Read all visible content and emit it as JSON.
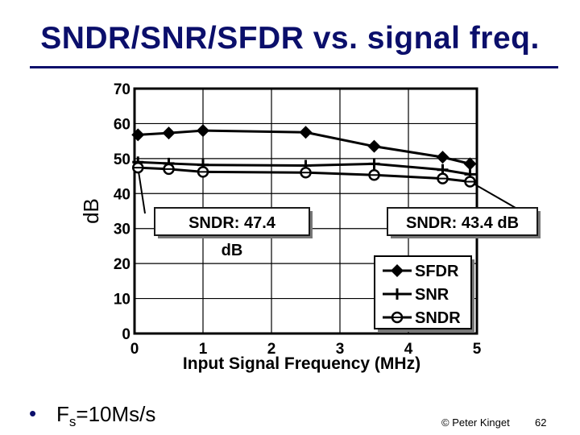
{
  "slide": {
    "title": "SNDR/SNR/SFDR vs. signal freq.",
    "bullet_symbol": "•",
    "bullet_pre": "F",
    "bullet_sub": "s",
    "bullet_post": "=10Ms/s",
    "copyright": "© Peter Kinget",
    "page_number": "62"
  },
  "colors": {
    "title": "#0b0f6b",
    "chart_line": "#000000",
    "box_border": "#1a1a1a"
  },
  "chart_data": {
    "type": "line",
    "title": "",
    "xlabel": "Input Signal Frequency (MHz)",
    "ylabel": "dB",
    "xlim": [
      0,
      5
    ],
    "ylim": [
      0,
      70
    ],
    "x_ticks": [
      0,
      1,
      2,
      3,
      4,
      5
    ],
    "y_ticks": [
      0,
      10,
      20,
      30,
      40,
      50,
      60,
      70
    ],
    "grid": true,
    "legend_position": "bottom-right",
    "series": [
      {
        "name": "SFDR",
        "marker": "diamond",
        "x": [
          0.05,
          0.5,
          1.0,
          2.5,
          3.5,
          4.5,
          4.9
        ],
        "y": [
          56.8,
          57.3,
          58.0,
          57.5,
          53.5,
          50.4,
          48.5
        ]
      },
      {
        "name": "SNR",
        "marker": "plus",
        "x": [
          0.05,
          0.5,
          1.0,
          2.5,
          3.5,
          4.5,
          4.9
        ],
        "y": [
          49.0,
          48.6,
          48.2,
          48.0,
          48.5,
          46.8,
          45.5
        ]
      },
      {
        "name": "SNDR",
        "marker": "circle",
        "x": [
          0.05,
          0.5,
          1.0,
          2.5,
          3.5,
          4.5,
          4.9
        ],
        "y": [
          47.4,
          47.0,
          46.2,
          46.0,
          45.3,
          44.3,
          43.4
        ]
      }
    ],
    "annotations": [
      {
        "lines": [
          "SNDR: 47.4",
          "dB"
        ],
        "point_x": 0.05,
        "point_y": 47.4
      },
      {
        "lines": [
          "SNDR: 43.4 dB"
        ],
        "point_x": 4.9,
        "point_y": 43.4
      }
    ]
  }
}
